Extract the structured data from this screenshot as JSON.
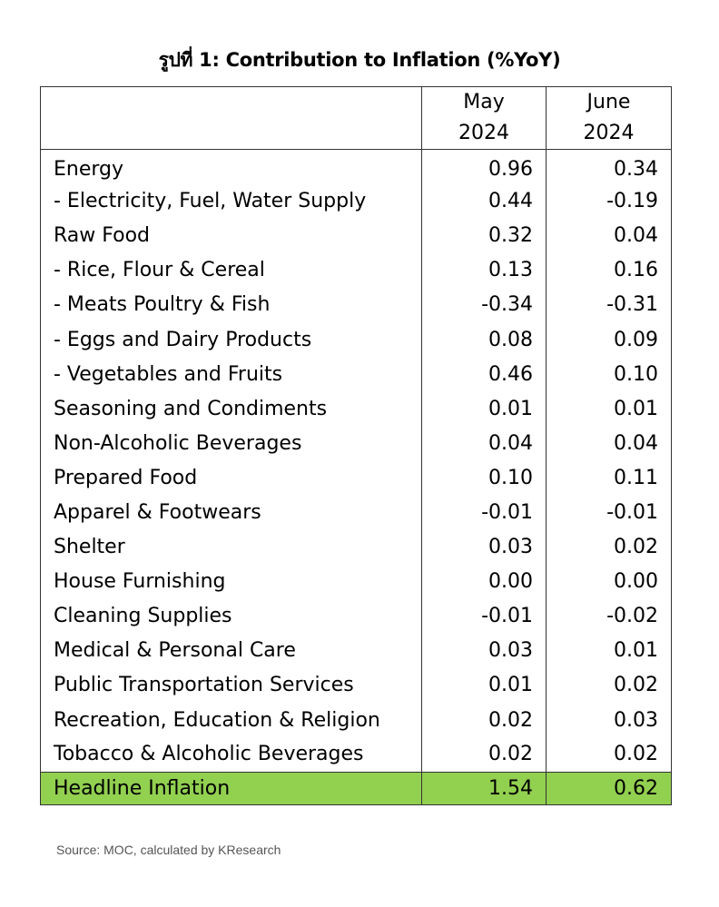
{
  "title": "รูปที่ 1: Contribution to Inflation (%YoY)",
  "table": {
    "columns": [
      "",
      "May 2024",
      "June 2024"
    ],
    "column_lines": [
      [
        "May",
        "2024"
      ],
      [
        "June",
        "2024"
      ]
    ],
    "rows": [
      {
        "label": "Energy",
        "may": "0.96",
        "june": "0.34"
      },
      {
        "label": "- Electricity, Fuel, Water Supply",
        "may": "0.44",
        "june": "-0.19"
      },
      {
        "label": "Raw Food",
        "may": "0.32",
        "june": "0.04"
      },
      {
        "label": "- Rice, Flour & Cereal",
        "may": "0.13",
        "june": "0.16"
      },
      {
        "label": "- Meats Poultry & Fish",
        "may": "-0.34",
        "june": "-0.31"
      },
      {
        "label": "- Eggs and Dairy Products",
        "may": "0.08",
        "june": "0.09"
      },
      {
        "label": "- Vegetables and Fruits",
        "may": "0.46",
        "june": "0.10"
      },
      {
        "label": "Seasoning and Condiments",
        "may": "0.01",
        "june": "0.01"
      },
      {
        "label": "Non-Alcoholic Beverages",
        "may": "0.04",
        "june": "0.04"
      },
      {
        "label": "Prepared Food",
        "may": "0.10",
        "june": "0.11"
      },
      {
        "label": "Apparel & Footwears",
        "may": "-0.01",
        "june": "-0.01"
      },
      {
        "label": "Shelter",
        "may": "0.03",
        "june": "0.02"
      },
      {
        "label": "House Furnishing",
        "may": "0.00",
        "june": "0.00"
      },
      {
        "label": "Cleaning Supplies",
        "may": "-0.01",
        "june": "-0.02"
      },
      {
        "label": "Medical & Personal Care",
        "may": "0.03",
        "june": "0.01"
      },
      {
        "label": "Public Transportation Services",
        "may": "0.01",
        "june": "0.02"
      },
      {
        "label": "Recreation, Education & Religion",
        "may": "0.02",
        "june": "0.03"
      },
      {
        "label": "Tobacco & Alcoholic Beverages",
        "may": "0.02",
        "june": "0.02"
      }
    ],
    "total": {
      "label": "Headline Inflation",
      "may": "1.54",
      "june": "0.62",
      "color": "#92d050"
    }
  },
  "source": "Source: MOC, calculated by KResearch"
}
